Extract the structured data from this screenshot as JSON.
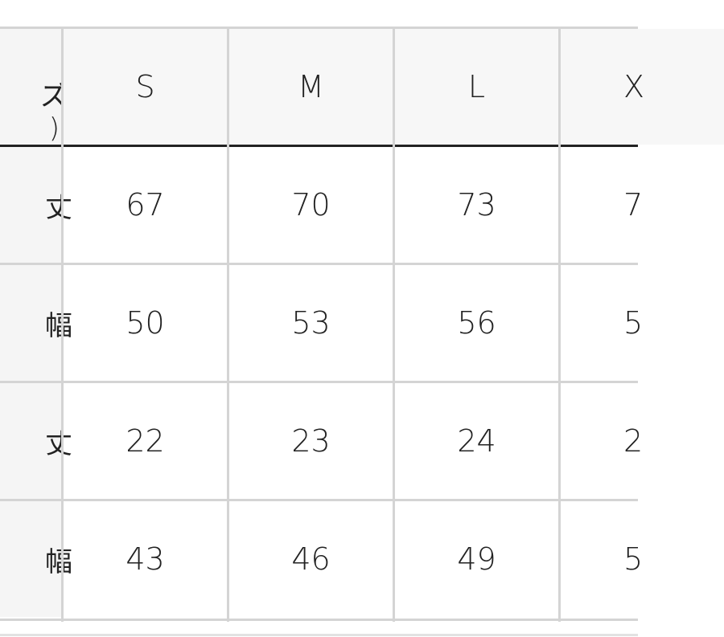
{
  "table": {
    "header_label_lines": [
      "ズ",
      ")"
    ],
    "columns": [
      "S",
      "M",
      "L",
      "X"
    ],
    "rows": [
      {
        "label": "丈",
        "values": [
          "67",
          "70",
          "73",
          "7"
        ]
      },
      {
        "label": "幅",
        "values": [
          "50",
          "53",
          "56",
          "5"
        ]
      },
      {
        "label": "丈",
        "values": [
          "22",
          "23",
          "24",
          "2"
        ]
      },
      {
        "label": "幅",
        "values": [
          "43",
          "46",
          "49",
          "5"
        ]
      }
    ]
  }
}
